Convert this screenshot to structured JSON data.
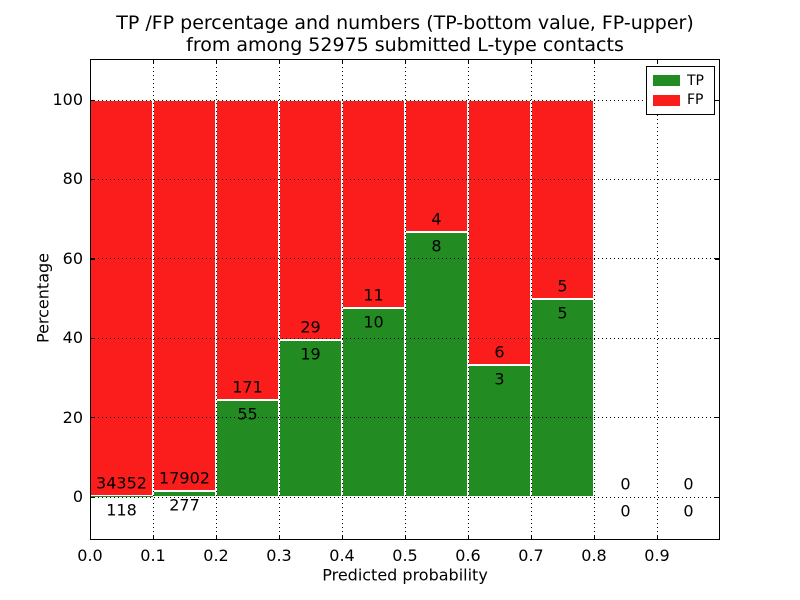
{
  "title": {
    "line1": "TP /FP percentage and numbers (TP-bottom value, FP-upper)",
    "line2": "from among 52975 submitted L-type contacts"
  },
  "chart_data": {
    "type": "bar",
    "stacked": true,
    "normalized_to_percent": true,
    "title": "TP /FP percentage and numbers (TP-bottom value, FP-upper) from among 52975 submitted L-type contacts",
    "xlabel": "Predicted probability",
    "ylabel": "Percentage",
    "total_submitted": 52975,
    "xlim": [
      0.0,
      1.0
    ],
    "ylim": [
      -10.8,
      110.3
    ],
    "grid": "dotted black, drawn above bars",
    "bar_edge_color": "#ffffff",
    "x_ticks": [
      "0.0",
      "0.1",
      "0.2",
      "0.3",
      "0.4",
      "0.5",
      "0.6",
      "0.7",
      "0.8",
      "0.9"
    ],
    "y_ticks": [
      "0",
      "20",
      "40",
      "60",
      "80",
      "100"
    ],
    "y_tick_values": [
      0,
      20,
      40,
      60,
      80,
      100
    ],
    "categories": [
      "0.0-0.1",
      "0.1-0.2",
      "0.2-0.3",
      "0.3-0.4",
      "0.4-0.5",
      "0.5-0.6",
      "0.6-0.7",
      "0.7-0.8",
      "0.8-0.9",
      "0.9-1.0"
    ],
    "bins": [
      {
        "x_lo": 0.0,
        "x_hi": 0.1,
        "tp": 118,
        "fp": 34352,
        "tp_pct": 0.34,
        "fp_pct": 99.66
      },
      {
        "x_lo": 0.1,
        "x_hi": 0.2,
        "tp": 277,
        "fp": 17902,
        "tp_pct": 1.52,
        "fp_pct": 98.48
      },
      {
        "x_lo": 0.2,
        "x_hi": 0.3,
        "tp": 55,
        "fp": 171,
        "tp_pct": 24.34,
        "fp_pct": 75.66
      },
      {
        "x_lo": 0.3,
        "x_hi": 0.4,
        "tp": 19,
        "fp": 29,
        "tp_pct": 39.58,
        "fp_pct": 60.42
      },
      {
        "x_lo": 0.4,
        "x_hi": 0.5,
        "tp": 10,
        "fp": 11,
        "tp_pct": 47.62,
        "fp_pct": 52.38
      },
      {
        "x_lo": 0.5,
        "x_hi": 0.6,
        "tp": 8,
        "fp": 4,
        "tp_pct": 66.67,
        "fp_pct": 33.33
      },
      {
        "x_lo": 0.6,
        "x_hi": 0.7,
        "tp": 3,
        "fp": 6,
        "tp_pct": 33.33,
        "fp_pct": 66.67
      },
      {
        "x_lo": 0.7,
        "x_hi": 0.8,
        "tp": 5,
        "fp": 5,
        "tp_pct": 50.0,
        "fp_pct": 50.0
      },
      {
        "x_lo": 0.8,
        "x_hi": 0.9,
        "tp": 0,
        "fp": 0,
        "tp_pct": 0,
        "fp_pct": 0
      },
      {
        "x_lo": 0.9,
        "x_hi": 1.0,
        "tp": 0,
        "fp": 0,
        "tp_pct": 0,
        "fp_pct": 0
      }
    ],
    "series": [
      {
        "name": "TP",
        "color": "#228b22",
        "counts": [
          118,
          277,
          55,
          19,
          10,
          8,
          3,
          5,
          0,
          0
        ]
      },
      {
        "name": "FP",
        "color": "#fb1c1c",
        "counts": [
          34352,
          17902,
          171,
          29,
          11,
          4,
          6,
          5,
          0,
          0
        ]
      }
    ],
    "legend": {
      "position": "upper right",
      "entries": [
        {
          "label": "TP",
          "color": "#228b22"
        },
        {
          "label": "FP",
          "color": "#fb1c1c"
        }
      ]
    },
    "colors": {
      "tp_green": "#228b22",
      "fp_red": "#fb1c1c",
      "text": "#000000",
      "background": "#ffffff"
    }
  }
}
